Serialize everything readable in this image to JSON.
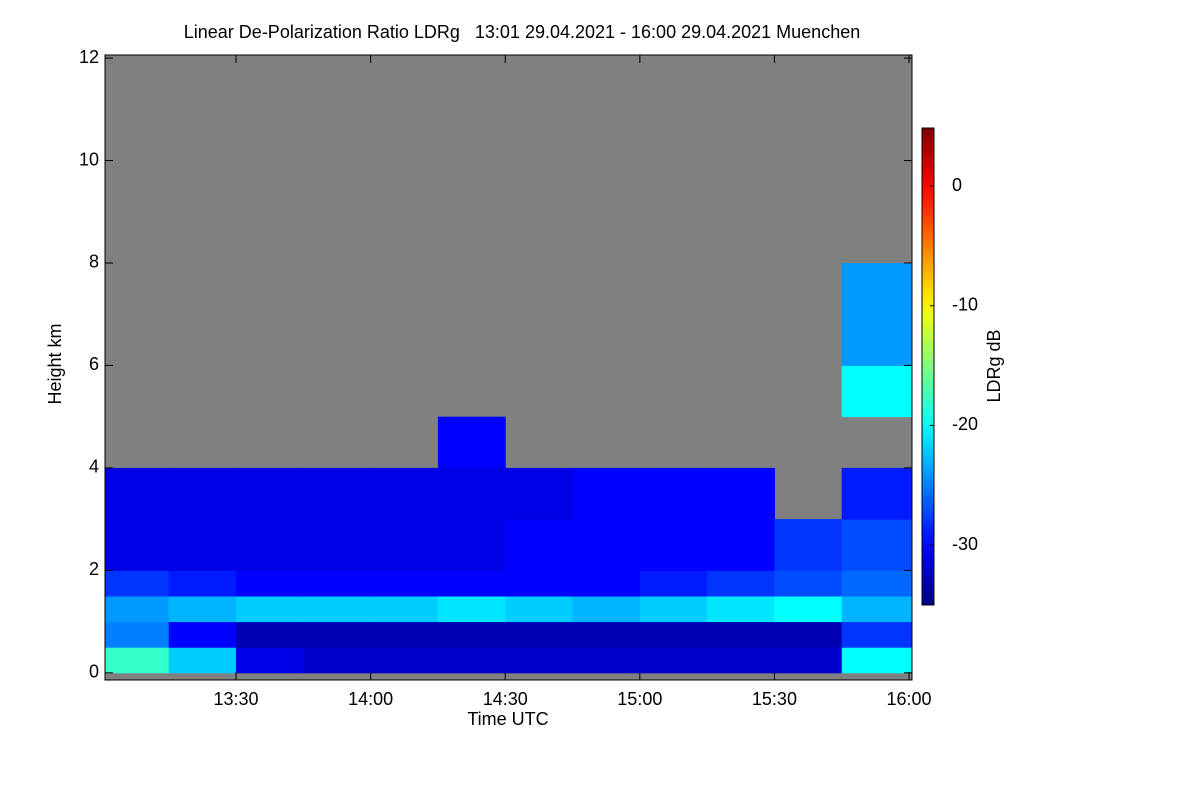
{
  "chart_data": {
    "type": "heatmap",
    "title": "Linear De-Polarization Ratio LDRg   13:01 29.04.2021 - 16:00 29.04.2021 Muenchen",
    "xlabel": "Time UTC",
    "ylabel": "Height km",
    "colorbar_label": "LDRg dB",
    "colormap": "jet",
    "missing_color": "#808080",
    "xlim": [
      13.0133,
      16.011
    ],
    "xticks": [
      {
        "value": 13.5,
        "label": "13:30"
      },
      {
        "value": 14.0,
        "label": "14:00"
      },
      {
        "value": 14.5,
        "label": "14:30"
      },
      {
        "value": 15.0,
        "label": "15:00"
      },
      {
        "value": 15.5,
        "label": "15:30"
      },
      {
        "value": 16.0,
        "label": "16:00"
      }
    ],
    "ylim": [
      -0.14,
      12.06
    ],
    "yticks": [
      0,
      2,
      4,
      6,
      8,
      10,
      12
    ],
    "zlim": [
      -35,
      4.85
    ],
    "zticks": [
      0,
      -10,
      -20,
      -30
    ],
    "x_bins": [
      13.0133,
      13.25,
      13.5,
      13.75,
      14.0,
      14.25,
      14.5,
      14.75,
      15.0,
      15.25,
      15.5,
      15.75,
      16.011
    ],
    "y_bins": [
      0,
      0.5,
      1,
      1.5,
      2,
      3,
      4,
      5,
      6,
      8,
      12
    ],
    "z": [
      [
        -18,
        -22,
        -31,
        -32,
        -32,
        -32,
        -32,
        -32,
        -32,
        -32,
        -32,
        -20
      ],
      [
        -25,
        -30,
        -33,
        -33,
        -33,
        -33,
        -33,
        -33,
        -33,
        -33,
        -33,
        -28
      ],
      [
        -24,
        -23,
        -22,
        -22,
        -22,
        -21,
        -22,
        -23,
        -22,
        -21,
        -20,
        -23
      ],
      [
        -28,
        -29,
        -30,
        -30,
        -30,
        -30,
        -30,
        -30,
        -29,
        -28,
        -27,
        -26
      ],
      [
        -31,
        -31,
        -31,
        -31,
        -31,
        -31,
        -30,
        -30,
        -30,
        -30,
        -28,
        -27
      ],
      [
        -31,
        -31,
        -31,
        -31,
        -31,
        -31,
        -31,
        -30,
        -30,
        -30,
        null,
        -29
      ],
      [
        null,
        null,
        null,
        null,
        null,
        -30,
        null,
        null,
        null,
        null,
        null,
        null
      ],
      [
        null,
        null,
        null,
        null,
        null,
        null,
        null,
        null,
        null,
        null,
        null,
        -20
      ],
      [
        null,
        null,
        null,
        null,
        null,
        null,
        null,
        null,
        null,
        null,
        null,
        -24
      ],
      [
        null,
        null,
        null,
        null,
        null,
        null,
        null,
        null,
        null,
        null,
        null,
        null
      ]
    ]
  }
}
